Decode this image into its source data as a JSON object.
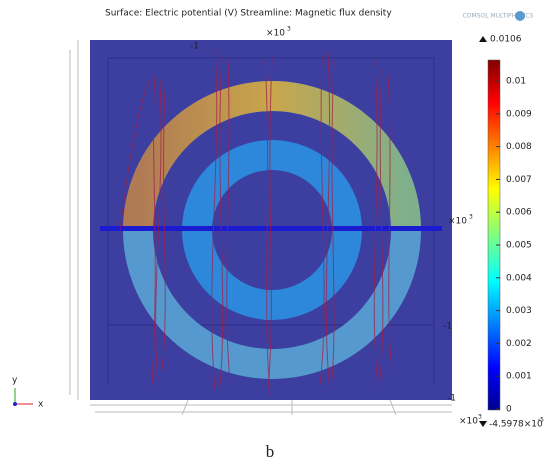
{
  "header": {
    "title": "Surface: Electric potential (V)  Streamline: Magnetic flux density",
    "logo": "COMSOL MULTIPHYSICS"
  },
  "plot": {
    "multiplier_top": "×10",
    "multiplier_right": "×10",
    "multiplier_bottom": "×10",
    "exponent": "3",
    "corner_labels": [
      "-1",
      "-1",
      "-1"
    ],
    "axis_y": "y",
    "axis_x": "x"
  },
  "colorbar": {
    "max_label": "0.0106",
    "min_label": "-4.5978×10",
    "min_exponent": "-5",
    "ticks": [
      "0.01",
      "0.009",
      "0.008",
      "0.007",
      "0.006",
      "0.005",
      "0.004",
      "0.003",
      "0.002",
      "0.001",
      "0"
    ]
  },
  "caption": "b"
}
